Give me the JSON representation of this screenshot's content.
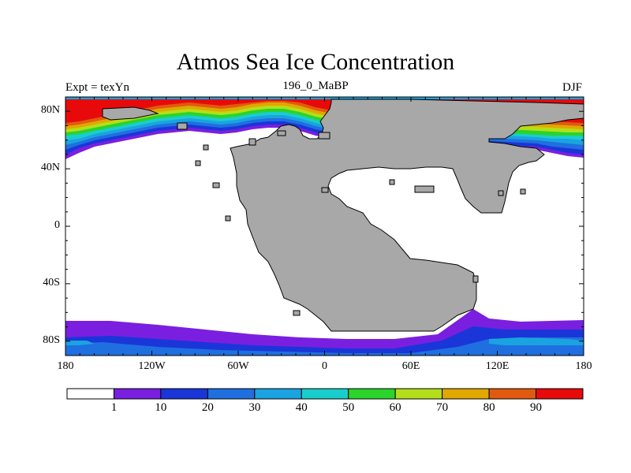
{
  "title": "Atmos Sea Ice Concentration",
  "subtitle_left": "Expt = texYn",
  "subtitle_center": "196_0_MaBP",
  "subtitle_right": "DJF",
  "lat_ticks": [
    {
      "lat": 80,
      "label": "80N"
    },
    {
      "lat": 40,
      "label": "40N"
    },
    {
      "lat": 0,
      "label": "0"
    },
    {
      "lat": -40,
      "label": "40S"
    },
    {
      "lat": -80,
      "label": "80S"
    }
  ],
  "lon_ticks": [
    {
      "lon": -180,
      "label": "180"
    },
    {
      "lon": -120,
      "label": "120W"
    },
    {
      "lon": -60,
      "label": "60W"
    },
    {
      "lon": 0,
      "label": "0"
    },
    {
      "lon": 60,
      "label": "60E"
    },
    {
      "lon": 120,
      "label": "120E"
    },
    {
      "lon": 180,
      "label": "180"
    }
  ],
  "colorbar": {
    "colors": [
      "#ffffff",
      "#7a1fe0",
      "#1a36d8",
      "#1f6fe0",
      "#1aa3e0",
      "#1acdcd",
      "#2ad42a",
      "#b4de1a",
      "#e0a800",
      "#e05a10",
      "#e80a0a"
    ],
    "labels": [
      "1",
      "10",
      "20",
      "30",
      "40",
      "50",
      "60",
      "70",
      "80",
      "90"
    ]
  },
  "map_colors": {
    "land": "#a8a8a8",
    "ocean": "#ffffff"
  }
}
